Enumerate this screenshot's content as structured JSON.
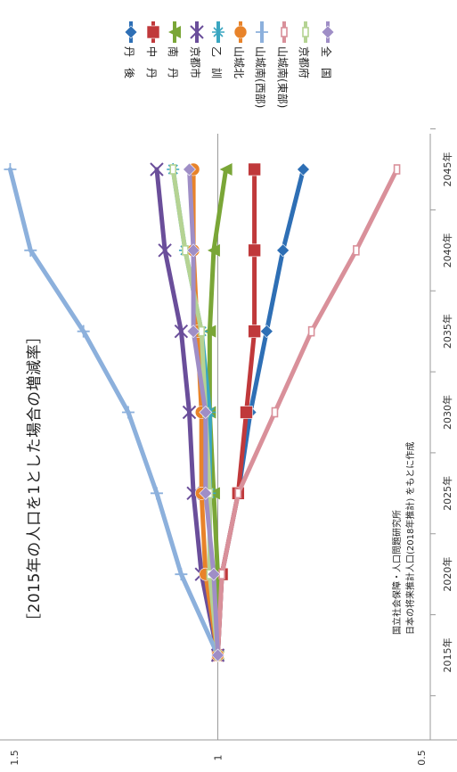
{
  "chart_data": {
    "type": "line",
    "title": "［2015年の人口を1とした場合の増減率］",
    "source": [
      "国立社会保障・人口問題研究所",
      "日本の将来推計人口(2018年推計) をもとに作成"
    ],
    "x": [
      "2015年",
      "2020年",
      "2025年",
      "2030年",
      "2035年",
      "2040年",
      "2045年"
    ],
    "ylim": [
      0.5,
      1.5
    ],
    "yticks": [
      "0.5",
      "1",
      "1.5"
    ],
    "grid": "horizontal",
    "legend_position": "top",
    "series": [
      {
        "name": "丹　後",
        "color": "#2e6fb5",
        "marker": "diamond",
        "values": [
          1.0,
          0.99,
          0.95,
          0.92,
          0.88,
          0.84,
          0.79
        ]
      },
      {
        "name": "中　丹",
        "color": "#c0393b",
        "marker": "square",
        "values": [
          1.0,
          0.99,
          0.95,
          0.93,
          0.91,
          0.91,
          0.91
        ]
      },
      {
        "name": "南　丹",
        "color": "#7aa637",
        "marker": "triangle",
        "values": [
          1.0,
          1.0,
          1.01,
          1.02,
          1.02,
          1.01,
          0.98
        ]
      },
      {
        "name": "京都市",
        "color": "#6a4e9a",
        "marker": "x",
        "values": [
          1.0,
          1.04,
          1.06,
          1.07,
          1.09,
          1.13,
          1.15
        ]
      },
      {
        "name": "乙　訓",
        "color": "#3aa6c1",
        "marker": "star",
        "values": [
          1.0,
          1.02,
          1.02,
          1.02,
          1.04,
          1.08,
          1.11
        ]
      },
      {
        "name": "山城北",
        "color": "#e8832a",
        "marker": "circle",
        "values": [
          1.0,
          1.03,
          1.04,
          1.04,
          1.05,
          1.06,
          1.06
        ]
      },
      {
        "name": "山城南(西部)",
        "color": "#8cb0dc",
        "marker": "plus",
        "values": [
          1.0,
          1.09,
          1.15,
          1.22,
          1.33,
          1.46,
          1.51
        ]
      },
      {
        "name": "山城南(東部)",
        "color": "#d9909a",
        "marker": "dash",
        "values": [
          1.0,
          0.99,
          0.95,
          0.86,
          0.77,
          0.66,
          0.56
        ]
      },
      {
        "name": "京都府",
        "color": "#b5d393",
        "marker": "dash",
        "values": [
          1.0,
          1.02,
          1.02,
          1.03,
          1.04,
          1.08,
          1.11
        ]
      },
      {
        "name": "全　国",
        "color": "#9f8ec6",
        "marker": "diamond",
        "values": [
          1.0,
          1.01,
          1.03,
          1.03,
          1.06,
          1.06,
          1.07
        ]
      }
    ]
  }
}
